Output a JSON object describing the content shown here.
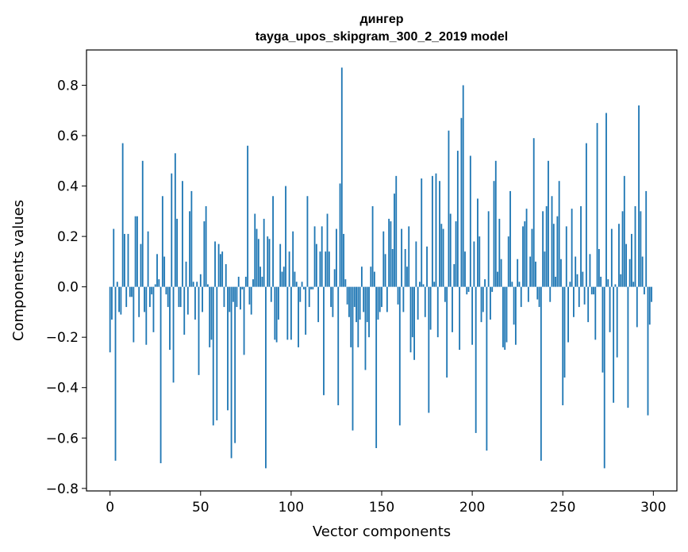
{
  "chart_data": {
    "type": "bar",
    "title": "дингер",
    "subtitle": "tayga_upos_skipgram_300_2_2019 model",
    "xlabel": "Vector components",
    "ylabel": "Components values",
    "xlim": [
      -13,
      313
    ],
    "ylim": [
      -0.81,
      0.94
    ],
    "xticks": [
      0,
      50,
      100,
      150,
      200,
      250,
      300
    ],
    "xtick_labels": [
      "0",
      "50",
      "100",
      "150",
      "200",
      "250",
      "300"
    ],
    "yticks": [
      0.8,
      0.6,
      0.4,
      0.2,
      0.0,
      -0.2,
      -0.4,
      -0.6,
      -0.8
    ],
    "ytick_labels": [
      "0.8",
      "0.6",
      "0.4",
      "0.2",
      "0.0",
      "−0.2",
      "−0.4",
      "−0.6",
      "−0.8"
    ],
    "grid": false,
    "color": "#1f77b4",
    "x_start": 0,
    "values": [
      -0.26,
      -0.13,
      0.23,
      -0.69,
      0.02,
      -0.1,
      -0.11,
      0.57,
      0.21,
      -0.08,
      0.21,
      -0.04,
      -0.04,
      -0.22,
      0.28,
      0.28,
      -0.12,
      0.17,
      0.5,
      -0.1,
      -0.23,
      0.22,
      -0.08,
      -0.03,
      -0.18,
      0.01,
      0.13,
      0.03,
      -0.7,
      0.36,
      0.12,
      -0.03,
      -0.08,
      -0.25,
      0.45,
      -0.38,
      0.53,
      0.27,
      -0.08,
      -0.08,
      0.42,
      -0.19,
      0.1,
      -0.11,
      0.3,
      0.38,
      0.02,
      -0.13,
      0.02,
      -0.35,
      0.05,
      -0.1,
      0.26,
      0.32,
      0.01,
      -0.24,
      -0.21,
      -0.55,
      0.18,
      -0.53,
      0.17,
      0.13,
      0.14,
      -0.08,
      0.09,
      -0.49,
      -0.1,
      -0.68,
      -0.06,
      -0.62,
      -0.08,
      0.04,
      -0.09,
      -0.01,
      -0.27,
      0.04,
      0.56,
      -0.07,
      -0.11,
      0.03,
      0.29,
      0.23,
      0.19,
      0.08,
      0.04,
      0.27,
      -0.72,
      0.2,
      0.19,
      -0.06,
      0.36,
      -0.21,
      -0.22,
      -0.13,
      0.17,
      0.06,
      0.08,
      0.4,
      -0.21,
      0.14,
      -0.21,
      0.22,
      0.06,
      0.02,
      -0.24,
      -0.06,
      0.02,
      -0.01,
      -0.19,
      0.36,
      -0.08,
      -0.01,
      -0.01,
      0.24,
      0.17,
      -0.14,
      0.14,
      0.24,
      -0.43,
      0.14,
      0.29,
      0.14,
      -0.08,
      -0.12,
      0.07,
      0.23,
      -0.47,
      0.41,
      0.87,
      0.21,
      0.03,
      -0.07,
      -0.12,
      -0.24,
      -0.57,
      -0.08,
      -0.14,
      -0.24,
      -0.13,
      0.08,
      -0.1,
      -0.33,
      -0.14,
      -0.2,
      0.08,
      0.32,
      0.06,
      -0.64,
      -0.13,
      -0.1,
      -0.08,
      0.22,
      0.13,
      -0.1,
      0.27,
      0.26,
      0.15,
      0.37,
      0.44,
      -0.07,
      -0.55,
      0.23,
      -0.1,
      0.15,
      0.08,
      0.24,
      -0.26,
      -0.2,
      -0.29,
      0.18,
      -0.13,
      0.02,
      0.43,
      0.01,
      -0.12,
      0.16,
      -0.5,
      -0.17,
      0.44,
      0.02,
      0.45,
      -0.2,
      0.42,
      0.25,
      0.23,
      -0.06,
      -0.36,
      0.62,
      0.29,
      -0.18,
      0.09,
      0.26,
      0.54,
      -0.25,
      0.67,
      0.8,
      0.14,
      -0.03,
      -0.02,
      0.52,
      -0.23,
      0.18,
      -0.58,
      0.35,
      0.2,
      -0.14,
      -0.1,
      0.03,
      -0.65,
      0.3,
      -0.13,
      -0.02,
      0.42,
      0.5,
      0.06,
      0.27,
      0.11,
      -0.24,
      -0.25,
      -0.22,
      0.2,
      0.38,
      0.02,
      -0.15,
      -0.23,
      0.11,
      0.02,
      -0.08,
      0.24,
      0.26,
      0.31,
      -0.06,
      0.12,
      0.23,
      0.59,
      0.1,
      -0.05,
      -0.08,
      -0.69,
      0.3,
      0.14,
      0.32,
      0.5,
      -0.06,
      0.36,
      0.25,
      0.04,
      0.28,
      0.42,
      0.11,
      -0.47,
      -0.36,
      0.24,
      -0.22,
      0.02,
      0.31,
      -0.12,
      0.12,
      0.05,
      -0.08,
      0.32,
      0.06,
      -0.07,
      0.57,
      -0.14,
      0.13,
      -0.03,
      -0.03,
      -0.21,
      0.65,
      0.15,
      0.04,
      -0.34,
      -0.72,
      0.69,
      0.03,
      -0.18,
      0.23,
      -0.46,
      0.01,
      -0.28,
      0.25,
      0.05,
      0.3,
      0.44,
      0.17,
      -0.48,
      0.11,
      0.21,
      0.02,
      0.32,
      -0.16,
      0.72,
      0.3,
      0.12,
      -0.03,
      0.38,
      -0.51,
      -0.15,
      -0.06
    ]
  }
}
